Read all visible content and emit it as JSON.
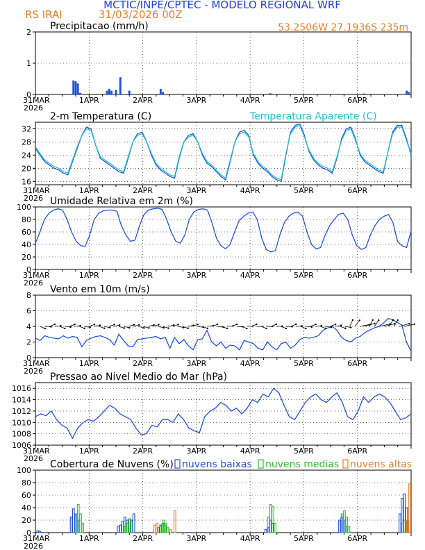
{
  "header": {
    "title": "MCTIC/INPE/CPTEC - MODELO REGIONAL WRF",
    "station": "RS IRAI",
    "run": "31/03/2026 00Z",
    "coords": "53.2506W 27.1936S 235m"
  },
  "colors": {
    "title": "#2040e0",
    "orange": "#e87f2a",
    "blue": "#2050e0",
    "cyan": "#20c0c8",
    "green": "#30c030",
    "axis": "#000000"
  },
  "time_axis": {
    "start_tick": "31MAR",
    "start_year": "2026",
    "ticks": [
      "1APR",
      "2APR",
      "3APR",
      "4APR",
      "5APR",
      "6APR"
    ],
    "hours_total": 168
  },
  "chart_data": [
    {
      "id": "precip",
      "type": "bar",
      "title": "Precipitacao (mm/h)",
      "ylim": [
        0,
        2
      ],
      "yticks": [
        "0",
        "1",
        "2"
      ],
      "series": [
        {
          "name": "precip",
          "hours": [
            17,
            18,
            19,
            20,
            32,
            33,
            34,
            36,
            38,
            42,
            56,
            57,
            105,
            147,
            166,
            167
          ],
          "values": [
            0.45,
            0.42,
            0.35,
            0.05,
            0.12,
            0.18,
            0.12,
            0.15,
            0.55,
            0.12,
            0.18,
            0.08,
            0.04,
            0.03,
            0.12,
            0.08
          ]
        }
      ]
    },
    {
      "id": "temp",
      "type": "line",
      "title": "2-m Temperatura (C)",
      "legend": "Temperatura Aparente (C)",
      "ylim": [
        15,
        34
      ],
      "yticks": [
        "16",
        "20",
        "24",
        "28",
        "32"
      ],
      "series": [
        {
          "name": "Temperatura (C)",
          "values": [
            26,
            24,
            22,
            21,
            20,
            19.5,
            18.5,
            18,
            22,
            26,
            30,
            32.5,
            32,
            27,
            23,
            22,
            21,
            20,
            19,
            18.5,
            23,
            28,
            30.5,
            31,
            28,
            24,
            21,
            19.5,
            18.5,
            17.5,
            17,
            23,
            28,
            30,
            30.5,
            28,
            24,
            21.5,
            20.5,
            19,
            17.5,
            16.5,
            22,
            28,
            31,
            31.5,
            30,
            24,
            21.5,
            20,
            19,
            17.5,
            16.5,
            16,
            24,
            31,
            33,
            33.5,
            30,
            25,
            22.5,
            21,
            20,
            19.5,
            18.5,
            23,
            29,
            32,
            32.5,
            29,
            24,
            22,
            21,
            20,
            19,
            18.5,
            25,
            31,
            33,
            33,
            29,
            24
          ]
        },
        {
          "name": "Temperatura Aparente (C)",
          "values": [
            26.5,
            24.5,
            22.5,
            21.5,
            20.5,
            20,
            19,
            18.5,
            22.5,
            26.5,
            30,
            32,
            31.5,
            27,
            23.5,
            22.5,
            21.5,
            20.5,
            19.5,
            19,
            23.5,
            28,
            30,
            30.5,
            28,
            24.5,
            21.5,
            20,
            19,
            18,
            17.5,
            23.5,
            28,
            29.5,
            30,
            28,
            24.5,
            22,
            21,
            19.5,
            18,
            17,
            22.5,
            28,
            30.5,
            31,
            29.5,
            24.5,
            22,
            20.5,
            19.5,
            18,
            17,
            16.5,
            24.5,
            30.5,
            32.5,
            33,
            29.5,
            25.5,
            23,
            21.5,
            20.5,
            20,
            19,
            23.5,
            28.5,
            31.5,
            32,
            28.5,
            24.5,
            22.5,
            21.5,
            20.5,
            19.5,
            19,
            25,
            30.5,
            32.5,
            32.5,
            28.5,
            24.5
          ]
        }
      ]
    },
    {
      "id": "rh",
      "type": "line",
      "title": "Umidade Relativa em 2m (%)",
      "ylim": [
        0,
        100
      ],
      "yticks": [
        "0",
        "20",
        "40",
        "60",
        "80",
        "100"
      ],
      "series": [
        {
          "name": "Umidade Relativa (%)",
          "values": [
            42,
            60,
            80,
            90,
            95,
            97,
            95,
            80,
            60,
            45,
            38,
            37,
            55,
            80,
            90,
            94,
            95,
            95,
            93,
            70,
            55,
            45,
            47,
            70,
            88,
            95,
            97,
            98,
            96,
            80,
            60,
            45,
            42,
            55,
            80,
            92,
            96,
            97,
            95,
            75,
            50,
            38,
            33,
            40,
            60,
            78,
            85,
            90,
            92,
            80,
            50,
            32,
            28,
            30,
            55,
            75,
            85,
            90,
            92,
            85,
            60,
            40,
            33,
            35,
            55,
            70,
            80,
            88,
            90,
            80,
            55,
            38,
            32,
            35,
            55,
            70,
            80,
            85,
            88,
            75,
            45,
            38,
            35,
            62
          ]
        }
      ]
    },
    {
      "id": "wind",
      "type": "line",
      "title": "Vento em 10m (m/s)",
      "ylim": [
        0,
        8
      ],
      "yticks": [
        "0",
        "2",
        "4",
        "6",
        "8"
      ],
      "series": [
        {
          "name": "Velocidade do vento (m/s)",
          "values": [
            2.5,
            2.2,
            2.8,
            2.6,
            2.5,
            2.4,
            2.8,
            2.5,
            2.7,
            2.6,
            1.4,
            2.2,
            2.5,
            2.7,
            2.8,
            2.6,
            2.3,
            1.6,
            3.0,
            2.2,
            1.5,
            1.4,
            2.3,
            2.4,
            2.5,
            2.6,
            2.7,
            2.4,
            2.6,
            1.2,
            2.6,
            1.8,
            2.3,
            1.5,
            1.0,
            2.3,
            2.4,
            3.5,
            2.0,
            1.5,
            2.0,
            1.2,
            1.6,
            1.5,
            1.0,
            2.2,
            2.0,
            1.8,
            1.2,
            1.0,
            2.0,
            1.4,
            1.0,
            1.8,
            2.0,
            1.2,
            1.6,
            2.3,
            2.6,
            2.5,
            2.6,
            2.8,
            3.5,
            3.8,
            4.0,
            3.5,
            2.6,
            2.2,
            2.0,
            2.5,
            2.7,
            3.2,
            3.5,
            3.8,
            4.0,
            4.4,
            5.0,
            4.9,
            4.5,
            4.2,
            2.0,
            0.8
          ]
        }
      ]
    },
    {
      "id": "slp",
      "type": "line",
      "title": "Pressao ao Nivel Medio do Mar (hPa)",
      "ylim": [
        1006,
        1017
      ],
      "yticks": [
        "1006",
        "1008",
        "1010",
        "1012",
        "1014",
        "1016"
      ],
      "series": [
        {
          "name": "Pressao (hPa)",
          "values": [
            1011,
            1011.5,
            1011.2,
            1012,
            1010.5,
            1009.5,
            1009,
            1007.2,
            1009,
            1010,
            1010.5,
            1010.2,
            1011,
            1012,
            1013,
            1012.5,
            1011.5,
            1011,
            1010.5,
            1009,
            1007.8,
            1008,
            1009.5,
            1009.2,
            1010.5,
            1010.5,
            1010,
            1011.5,
            1010.5,
            1009,
            1008.5,
            1008.2,
            1011,
            1012,
            1012.5,
            1013.5,
            1013,
            1012,
            1012.5,
            1011.5,
            1012.5,
            1014,
            1013.5,
            1015,
            1014.5,
            1016,
            1015.2,
            1013,
            1011,
            1010.5,
            1012,
            1013.5,
            1014.5,
            1015,
            1014,
            1013.5,
            1014.5,
            1015.2,
            1013.5,
            1011,
            1010.5,
            1012,
            1014.5,
            1013.5,
            1014.5,
            1015,
            1014.5,
            1013.5,
            1012,
            1010.5,
            1010.8,
            1011.5
          ]
        }
      ]
    },
    {
      "id": "clouds",
      "type": "bar",
      "title": "Cobertura de Nuvens (%)",
      "ylim": [
        0,
        100
      ],
      "yticks": [
        "0",
        "20",
        "40",
        "60",
        "80",
        "100"
      ],
      "legend": [
        "nuvens baixas",
        "nuvens medias",
        "nuvens altas"
      ],
      "series": [
        {
          "name": "nuvens baixas",
          "hours": [
            1,
            2,
            16,
            17,
            18,
            19,
            37,
            38,
            39,
            40,
            41,
            42,
            43,
            44,
            55,
            56,
            57,
            58,
            103,
            104,
            105,
            106,
            136,
            137,
            138,
            139,
            163,
            164,
            165,
            166
          ],
          "values": [
            3,
            2,
            25,
            38,
            30,
            20,
            10,
            12,
            18,
            25,
            20,
            22,
            20,
            30,
            8,
            12,
            15,
            12,
            5,
            8,
            20,
            15,
            20,
            25,
            20,
            10,
            30,
            55,
            62,
            40
          ]
        },
        {
          "name": "nuvens medias",
          "hours": [
            18,
            19,
            20,
            21,
            40,
            41,
            42,
            43,
            56,
            57,
            58,
            59,
            104,
            105,
            106,
            107,
            137,
            138,
            139,
            140,
            164,
            165
          ],
          "values": [
            28,
            45,
            30,
            15,
            10,
            15,
            22,
            18,
            10,
            20,
            15,
            8,
            25,
            45,
            42,
            15,
            30,
            35,
            25,
            10,
            15,
            20
          ]
        },
        {
          "name": "nuvens altas",
          "hours": [
            53,
            54,
            60,
            62,
            166,
            167
          ],
          "values": [
            12,
            15,
            5,
            35,
            20,
            78
          ]
        }
      ]
    }
  ]
}
